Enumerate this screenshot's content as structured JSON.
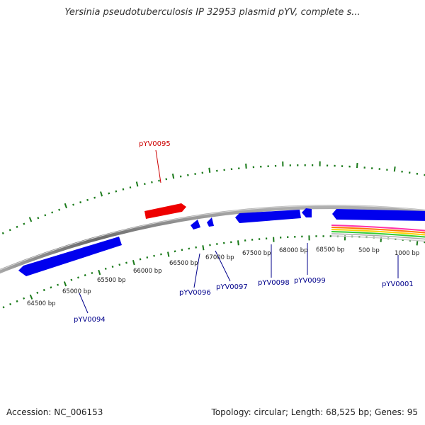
{
  "title": "Yersinia pseudotuberculosis IP 32953 plasmid pYV, complete s...",
  "footer": {
    "accession": "Accession: NC_006153",
    "summary": "Topology: circular; Length: 68,525 bp; Genes: 95"
  },
  "colors": {
    "forward_gene": "#0000ee",
    "reverse_gene": "#ee0000",
    "forward_label": "#00008b",
    "reverse_label": "#cc0000",
    "tick": "#1a7a1a",
    "backbone": "#8a8a8a"
  },
  "tick_labels": [
    "64500 bp",
    "65000 bp",
    "65500 bp",
    "66000 bp",
    "66500 bp",
    "67000 bp",
    "67500 bp",
    "68000 bp",
    "68500 bp",
    "500 bp",
    "1000 bp"
  ],
  "gene_labels": {
    "pYV0095": "pYV0095",
    "pYV0094": "pYV0094",
    "pYV0096": "pYV0096",
    "pYV0097": "pYV0097",
    "pYV0098": "pYV0098",
    "pYV0099": "pYV0099",
    "pYV0001": "pYV0001"
  }
}
